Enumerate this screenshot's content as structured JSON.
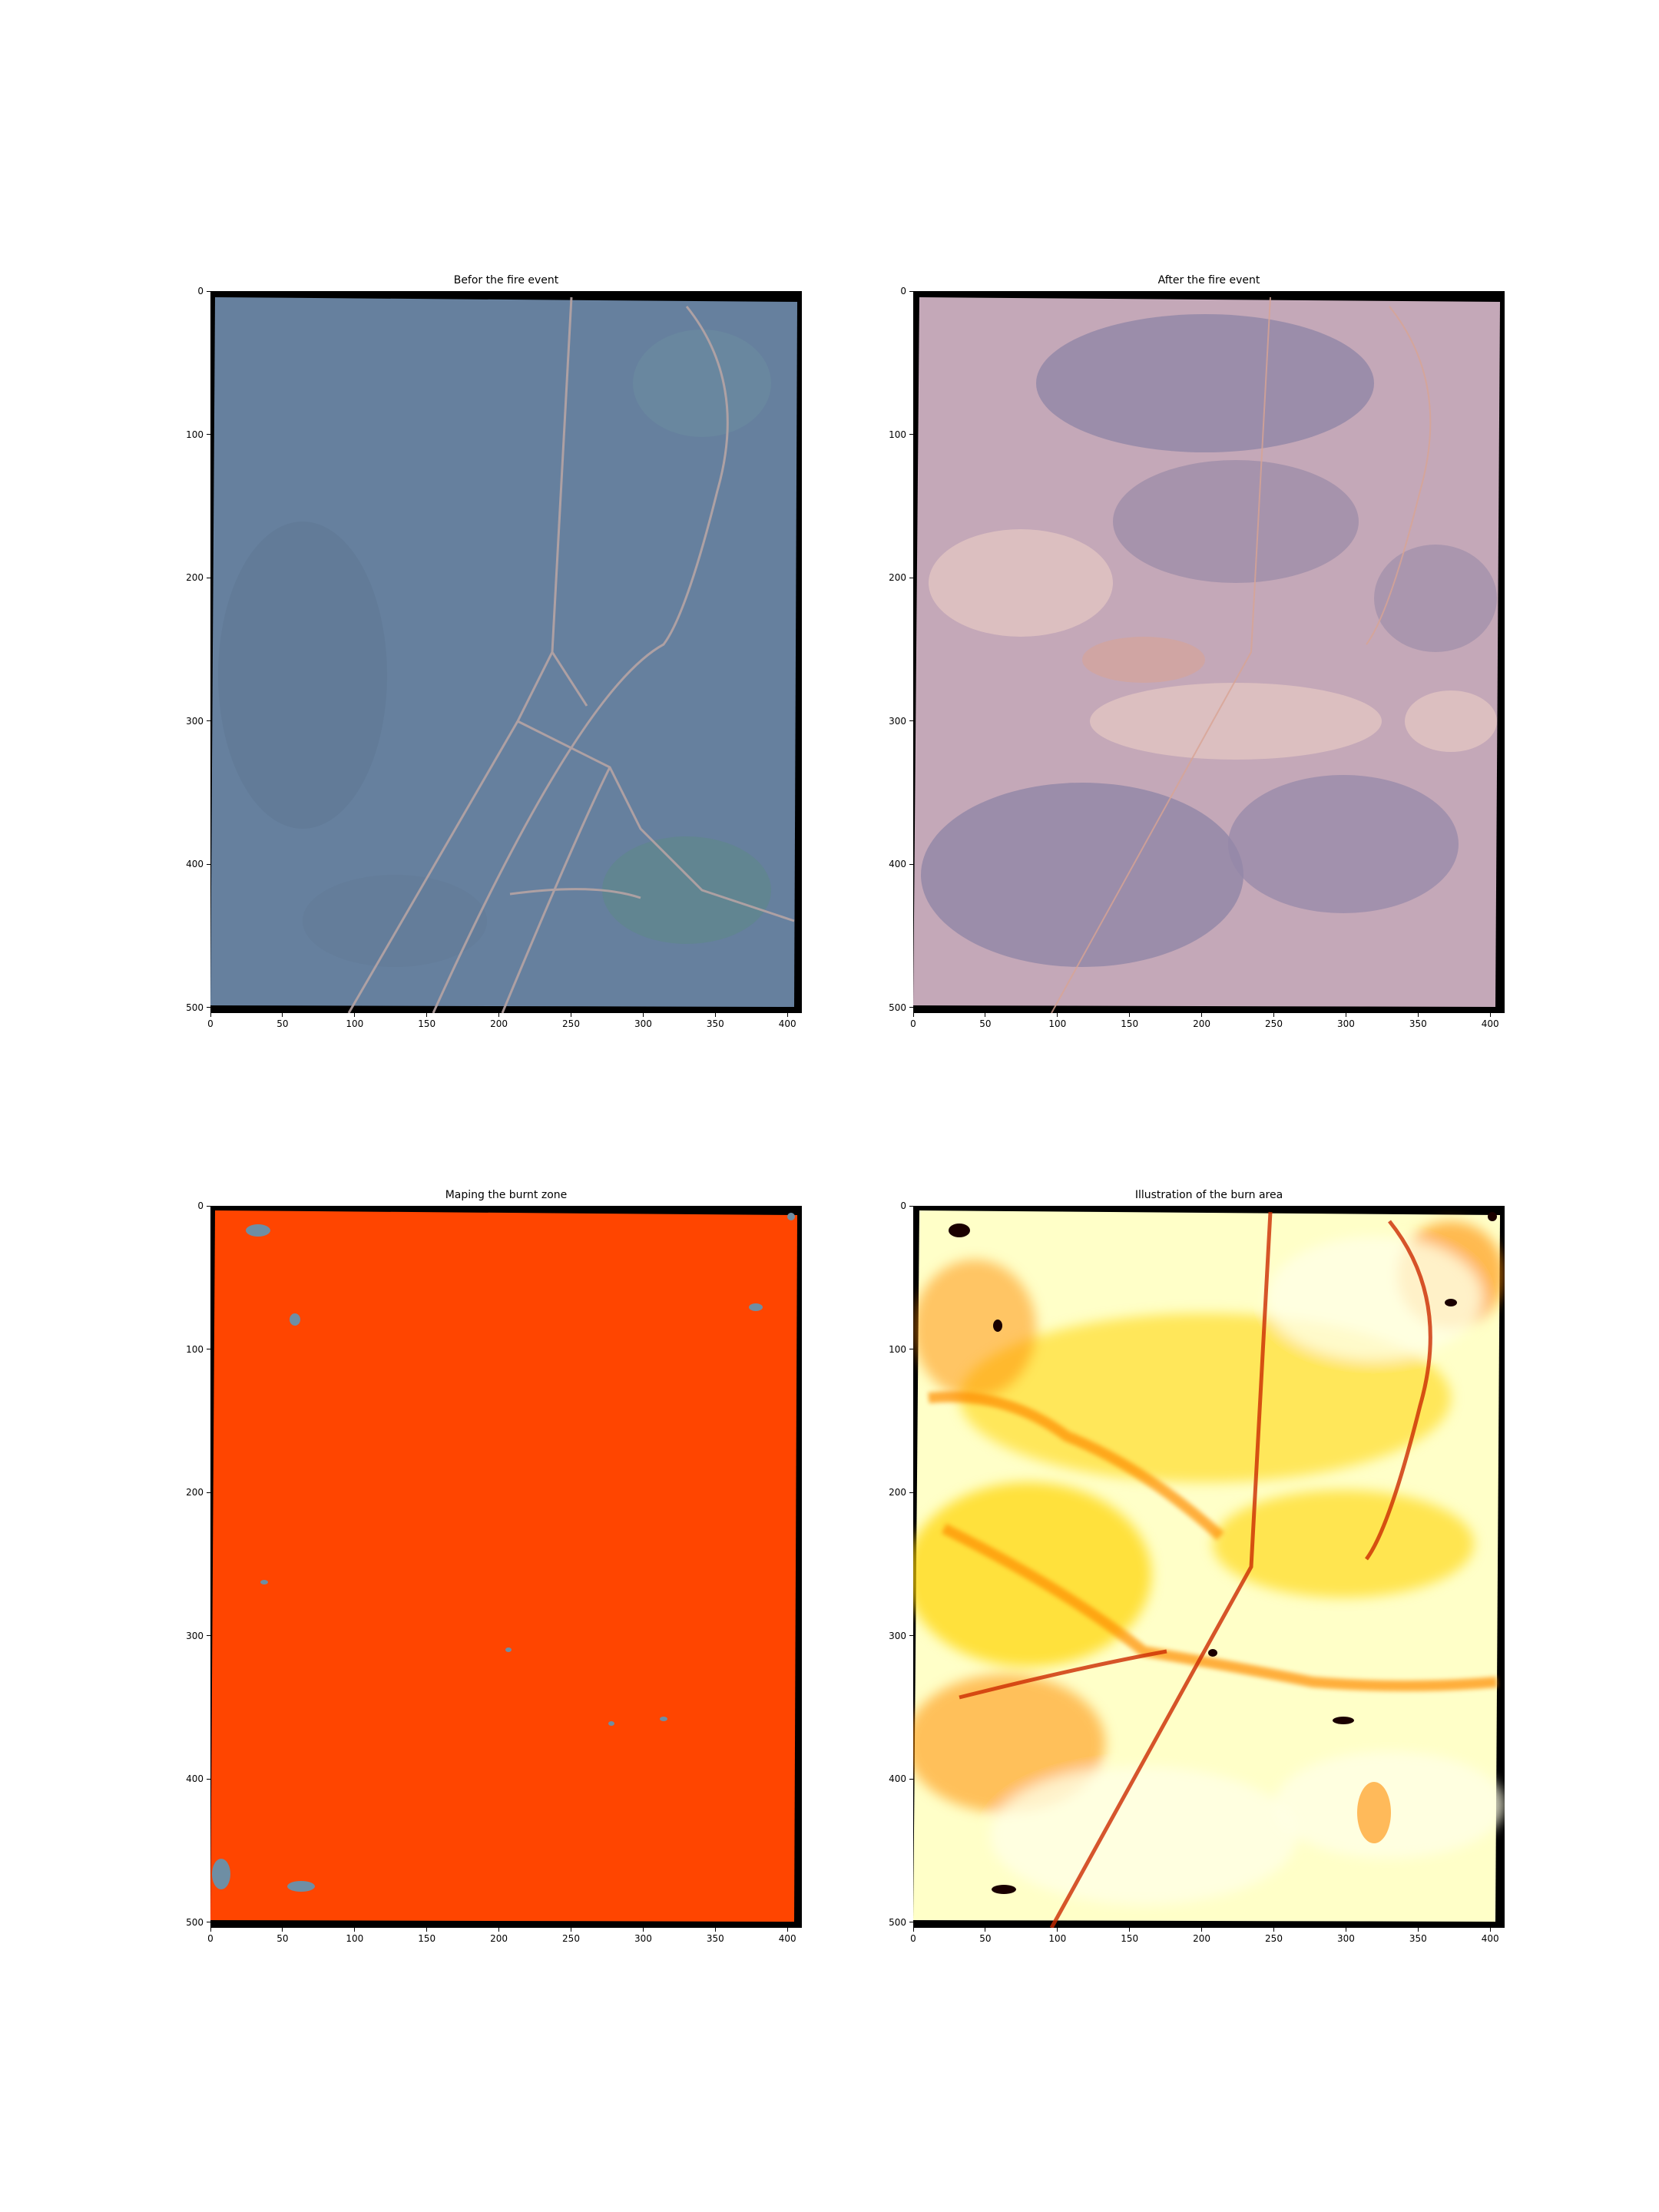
{
  "panels": [
    {
      "title": "Befor the fire event",
      "kind": "satellite-before",
      "yticks": [
        "0",
        "100",
        "200",
        "300",
        "400",
        "500"
      ],
      "xticks": [
        "0",
        "50",
        "100",
        "150",
        "200",
        "250",
        "300",
        "350",
        "400"
      ],
      "colors": {
        "base": "#66809e",
        "road": "#b6a4a4",
        "veg": "#5c8a84",
        "edge": "#000000"
      }
    },
    {
      "title": "After the fire event",
      "kind": "satellite-after",
      "yticks": [
        "0",
        "100",
        "200",
        "300",
        "400",
        "500"
      ],
      "xticks": [
        "0",
        "50",
        "100",
        "150",
        "200",
        "250",
        "300",
        "350",
        "400"
      ],
      "colors": {
        "base": "#c4a8b8",
        "dark": "#8e84a6",
        "light": "#e2c4c2",
        "orange": "#d8a494",
        "edge": "#000000"
      }
    },
    {
      "title": "Maping the burnt zone",
      "kind": "burn-mask",
      "yticks": [
        "0",
        "100",
        "200",
        "300",
        "400",
        "500"
      ],
      "xticks": [
        "0",
        "50",
        "100",
        "150",
        "200",
        "250",
        "300",
        "350",
        "400"
      ],
      "colors": {
        "burnt": "#ff4500",
        "unburnt": "#6e8ea4",
        "edge": "#000000"
      }
    },
    {
      "title": "Illustration of the burn area",
      "kind": "burn-heat",
      "yticks": [
        "0",
        "100",
        "200",
        "300",
        "400",
        "500"
      ],
      "xticks": [
        "0",
        "50",
        "100",
        "150",
        "200",
        "250",
        "300",
        "350",
        "400"
      ],
      "colors": {
        "low": "#ffffc8",
        "mid": "#ffd400",
        "high": "#ff8c00",
        "severe": "#cc2a00",
        "max": "#1a0000",
        "edge": "#000000"
      }
    }
  ]
}
